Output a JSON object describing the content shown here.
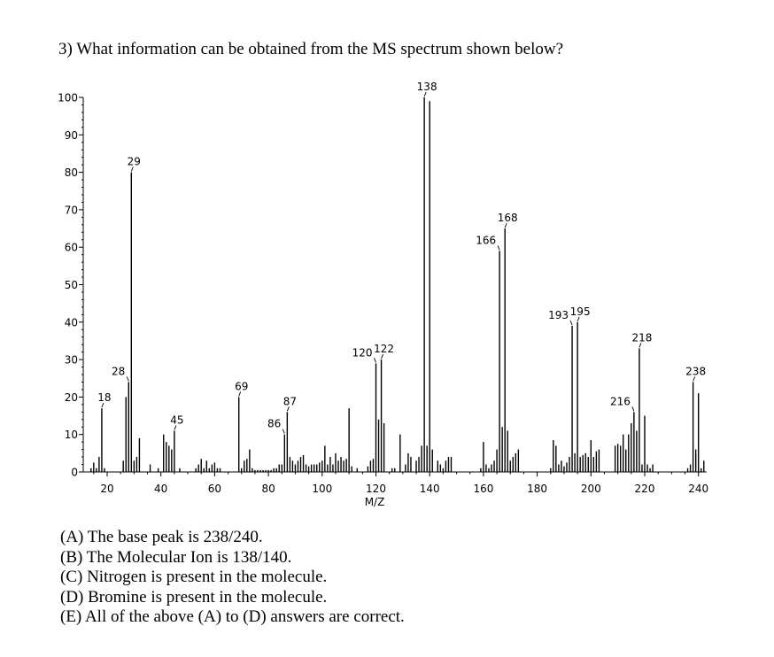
{
  "question": {
    "text": "3) What information can be obtained from the MS spectrum shown below?"
  },
  "chart_data": {
    "type": "bar",
    "title": "",
    "xlabel": "M/Z",
    "ylabel": "",
    "xlim": [
      12,
      243
    ],
    "ylim": [
      0,
      100
    ],
    "x_ticks": [
      20,
      40,
      60,
      80,
      100,
      120,
      140,
      160,
      180,
      200,
      220,
      240
    ],
    "y_ticks": [
      0,
      10,
      20,
      30,
      40,
      50,
      60,
      70,
      80,
      90,
      100
    ],
    "grid": false,
    "legend": "none",
    "peaks": [
      {
        "mz": 14,
        "intensity": 1
      },
      {
        "mz": 15,
        "intensity": 2.5
      },
      {
        "mz": 16,
        "intensity": 1
      },
      {
        "mz": 17,
        "intensity": 4
      },
      {
        "mz": 18,
        "intensity": 17,
        "label": "18"
      },
      {
        "mz": 19,
        "intensity": 1
      },
      {
        "mz": 26,
        "intensity": 3
      },
      {
        "mz": 27,
        "intensity": 20
      },
      {
        "mz": 28,
        "intensity": 24,
        "label": "28"
      },
      {
        "mz": 29,
        "intensity": 80,
        "label": "29"
      },
      {
        "mz": 30,
        "intensity": 3
      },
      {
        "mz": 31,
        "intensity": 4
      },
      {
        "mz": 32,
        "intensity": 9
      },
      {
        "mz": 36,
        "intensity": 2
      },
      {
        "mz": 39,
        "intensity": 1
      },
      {
        "mz": 41,
        "intensity": 10
      },
      {
        "mz": 42,
        "intensity": 8
      },
      {
        "mz": 43,
        "intensity": 7
      },
      {
        "mz": 44,
        "intensity": 6
      },
      {
        "mz": 45,
        "intensity": 11,
        "label": "45"
      },
      {
        "mz": 47,
        "intensity": 1
      },
      {
        "mz": 53,
        "intensity": 1
      },
      {
        "mz": 54,
        "intensity": 2
      },
      {
        "mz": 55,
        "intensity": 3.5
      },
      {
        "mz": 56,
        "intensity": 1
      },
      {
        "mz": 57,
        "intensity": 3
      },
      {
        "mz": 58,
        "intensity": 1
      },
      {
        "mz": 59,
        "intensity": 2
      },
      {
        "mz": 60,
        "intensity": 2.5
      },
      {
        "mz": 61,
        "intensity": 1
      },
      {
        "mz": 62,
        "intensity": 1
      },
      {
        "mz": 69,
        "intensity": 20,
        "label": "69"
      },
      {
        "mz": 70,
        "intensity": 1
      },
      {
        "mz": 71,
        "intensity": 3
      },
      {
        "mz": 72,
        "intensity": 3.5
      },
      {
        "mz": 73,
        "intensity": 6
      },
      {
        "mz": 74,
        "intensity": 1
      },
      {
        "mz": 75,
        "intensity": 0.5
      },
      {
        "mz": 76,
        "intensity": 0.5
      },
      {
        "mz": 77,
        "intensity": 0.5
      },
      {
        "mz": 78,
        "intensity": 0.5
      },
      {
        "mz": 79,
        "intensity": 0.5
      },
      {
        "mz": 80,
        "intensity": 0.5
      },
      {
        "mz": 81,
        "intensity": 0.5
      },
      {
        "mz": 82,
        "intensity": 1
      },
      {
        "mz": 83,
        "intensity": 1
      },
      {
        "mz": 84,
        "intensity": 2
      },
      {
        "mz": 85,
        "intensity": 2
      },
      {
        "mz": 86,
        "intensity": 10,
        "label": "86"
      },
      {
        "mz": 87,
        "intensity": 16,
        "label": "87"
      },
      {
        "mz": 88,
        "intensity": 4
      },
      {
        "mz": 89,
        "intensity": 3
      },
      {
        "mz": 90,
        "intensity": 2
      },
      {
        "mz": 91,
        "intensity": 3
      },
      {
        "mz": 92,
        "intensity": 4
      },
      {
        "mz": 93,
        "intensity": 4.5
      },
      {
        "mz": 94,
        "intensity": 2
      },
      {
        "mz": 95,
        "intensity": 1.5
      },
      {
        "mz": 96,
        "intensity": 2
      },
      {
        "mz": 97,
        "intensity": 2
      },
      {
        "mz": 98,
        "intensity": 2
      },
      {
        "mz": 99,
        "intensity": 2.5
      },
      {
        "mz": 100,
        "intensity": 3
      },
      {
        "mz": 101,
        "intensity": 7
      },
      {
        "mz": 102,
        "intensity": 2
      },
      {
        "mz": 103,
        "intensity": 4
      },
      {
        "mz": 104,
        "intensity": 2
      },
      {
        "mz": 105,
        "intensity": 5
      },
      {
        "mz": 106,
        "intensity": 3
      },
      {
        "mz": 107,
        "intensity": 4
      },
      {
        "mz": 108,
        "intensity": 3
      },
      {
        "mz": 109,
        "intensity": 3.5
      },
      {
        "mz": 110,
        "intensity": 17
      },
      {
        "mz": 111,
        "intensity": 1.5
      },
      {
        "mz": 113,
        "intensity": 1
      },
      {
        "mz": 117,
        "intensity": 1.5
      },
      {
        "mz": 118,
        "intensity": 3
      },
      {
        "mz": 119,
        "intensity": 3.5
      },
      {
        "mz": 120,
        "intensity": 29,
        "label": "120"
      },
      {
        "mz": 121,
        "intensity": 14
      },
      {
        "mz": 122,
        "intensity": 30,
        "label": "122"
      },
      {
        "mz": 123,
        "intensity": 13
      },
      {
        "mz": 126,
        "intensity": 1
      },
      {
        "mz": 127,
        "intensity": 1
      },
      {
        "mz": 129,
        "intensity": 10
      },
      {
        "mz": 131,
        "intensity": 2
      },
      {
        "mz": 132,
        "intensity": 5
      },
      {
        "mz": 133,
        "intensity": 4
      },
      {
        "mz": 135,
        "intensity": 3
      },
      {
        "mz": 136,
        "intensity": 4
      },
      {
        "mz": 137,
        "intensity": 7
      },
      {
        "mz": 138,
        "intensity": 100,
        "label": "138"
      },
      {
        "mz": 139,
        "intensity": 7
      },
      {
        "mz": 140,
        "intensity": 99
      },
      {
        "mz": 141,
        "intensity": 6
      },
      {
        "mz": 143,
        "intensity": 3
      },
      {
        "mz": 144,
        "intensity": 2
      },
      {
        "mz": 145,
        "intensity": 1
      },
      {
        "mz": 146,
        "intensity": 3
      },
      {
        "mz": 147,
        "intensity": 4
      },
      {
        "mz": 148,
        "intensity": 4
      },
      {
        "mz": 159,
        "intensity": 1
      },
      {
        "mz": 160,
        "intensity": 8
      },
      {
        "mz": 161,
        "intensity": 2
      },
      {
        "mz": 162,
        "intensity": 1
      },
      {
        "mz": 163,
        "intensity": 2
      },
      {
        "mz": 164,
        "intensity": 3
      },
      {
        "mz": 165,
        "intensity": 6
      },
      {
        "mz": 166,
        "intensity": 59,
        "label": "166"
      },
      {
        "mz": 167,
        "intensity": 12
      },
      {
        "mz": 168,
        "intensity": 65,
        "label": "168"
      },
      {
        "mz": 169,
        "intensity": 11
      },
      {
        "mz": 170,
        "intensity": 3
      },
      {
        "mz": 171,
        "intensity": 4
      },
      {
        "mz": 172,
        "intensity": 5
      },
      {
        "mz": 173,
        "intensity": 6
      },
      {
        "mz": 185,
        "intensity": 1
      },
      {
        "mz": 186,
        "intensity": 8.5
      },
      {
        "mz": 187,
        "intensity": 7
      },
      {
        "mz": 188,
        "intensity": 2
      },
      {
        "mz": 189,
        "intensity": 3
      },
      {
        "mz": 190,
        "intensity": 1.5
      },
      {
        "mz": 191,
        "intensity": 2.5
      },
      {
        "mz": 192,
        "intensity": 4
      },
      {
        "mz": 193,
        "intensity": 39,
        "label": "193"
      },
      {
        "mz": 194,
        "intensity": 5
      },
      {
        "mz": 195,
        "intensity": 40,
        "label": "195"
      },
      {
        "mz": 196,
        "intensity": 4
      },
      {
        "mz": 197,
        "intensity": 4.5
      },
      {
        "mz": 198,
        "intensity": 5
      },
      {
        "mz": 199,
        "intensity": 4
      },
      {
        "mz": 200,
        "intensity": 8.5
      },
      {
        "mz": 201,
        "intensity": 4
      },
      {
        "mz": 202,
        "intensity": 5.5
      },
      {
        "mz": 203,
        "intensity": 6
      },
      {
        "mz": 209,
        "intensity": 7
      },
      {
        "mz": 210,
        "intensity": 7.5
      },
      {
        "mz": 211,
        "intensity": 7
      },
      {
        "mz": 212,
        "intensity": 10
      },
      {
        "mz": 213,
        "intensity": 6
      },
      {
        "mz": 214,
        "intensity": 10
      },
      {
        "mz": 215,
        "intensity": 13
      },
      {
        "mz": 216,
        "intensity": 16,
        "label": "216"
      },
      {
        "mz": 217,
        "intensity": 11
      },
      {
        "mz": 218,
        "intensity": 33,
        "label": "218"
      },
      {
        "mz": 219,
        "intensity": 2
      },
      {
        "mz": 220,
        "intensity": 15
      },
      {
        "mz": 221,
        "intensity": 2
      },
      {
        "mz": 222,
        "intensity": 1
      },
      {
        "mz": 223,
        "intensity": 2
      },
      {
        "mz": 236,
        "intensity": 1
      },
      {
        "mz": 237,
        "intensity": 2
      },
      {
        "mz": 238,
        "intensity": 24,
        "label": "238"
      },
      {
        "mz": 239,
        "intensity": 6
      },
      {
        "mz": 240,
        "intensity": 21
      },
      {
        "mz": 241,
        "intensity": 1
      },
      {
        "mz": 242,
        "intensity": 3
      }
    ]
  },
  "answers": [
    "(A) The base peak is 238/240.",
    "(B) The Molecular Ion is 138/140.",
    "(C) Nitrogen is present in the molecule.",
    "(D) Bromine is present in the molecule.",
    "(E) All of the above (A) to (D) answers are correct."
  ]
}
